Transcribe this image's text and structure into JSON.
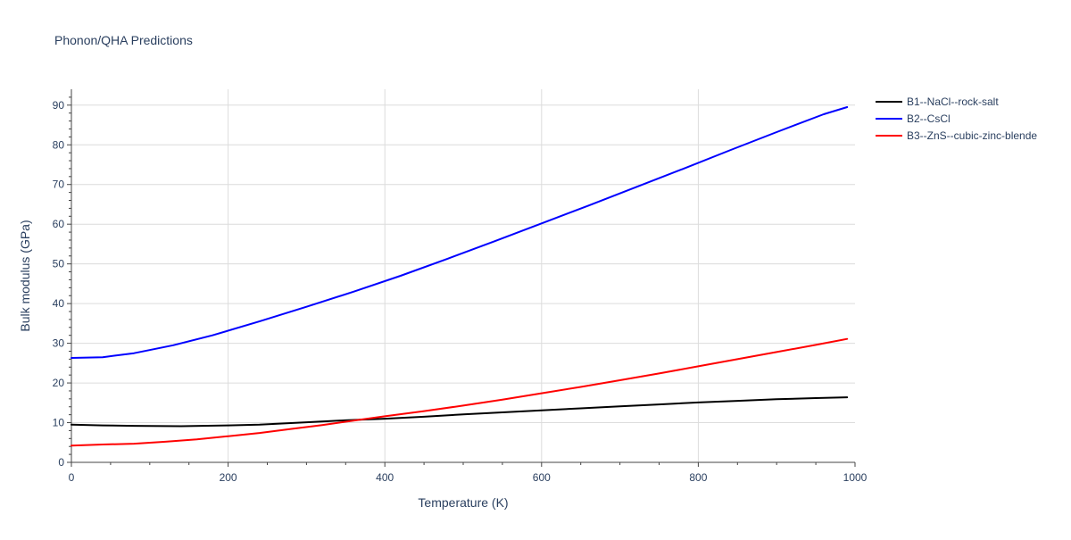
{
  "chart_data": {
    "type": "line",
    "title": "Phonon/QHA Predictions",
    "xlabel": "Temperature (K)",
    "ylabel": "Bulk modulus (GPa)",
    "xlim": [
      0,
      1000
    ],
    "ylim": [
      0,
      94
    ],
    "xticks": [
      0,
      200,
      400,
      600,
      800,
      1000
    ],
    "yticks": [
      0,
      10,
      20,
      30,
      40,
      50,
      60,
      70,
      80,
      90
    ],
    "grid": true,
    "legend_position": "top-right, outside plot",
    "series": [
      {
        "name": "B1--NaCl--rock-salt",
        "color": "#000000",
        "x": [
          0,
          40,
          80,
          140,
          200,
          240,
          300,
          350,
          400,
          450,
          500,
          550,
          600,
          650,
          700,
          750,
          800,
          850,
          900,
          950,
          990
        ],
        "y": [
          9.5,
          9.3,
          9.2,
          9.1,
          9.3,
          9.5,
          10.1,
          10.6,
          11.0,
          11.5,
          12.1,
          12.6,
          13.1,
          13.6,
          14.1,
          14.6,
          15.1,
          15.5,
          15.9,
          16.2,
          16.4
        ]
      },
      {
        "name": "B2--CsCl",
        "color": "#0000ff",
        "x": [
          0,
          40,
          80,
          130,
          180,
          240,
          300,
          360,
          420,
          480,
          540,
          600,
          660,
          720,
          780,
          840,
          900,
          960,
          990
        ],
        "y": [
          26.3,
          26.5,
          27.5,
          29.5,
          32.0,
          35.5,
          39.2,
          43.0,
          47.0,
          51.3,
          55.7,
          60.2,
          64.7,
          69.3,
          73.9,
          78.6,
          83.2,
          87.7,
          89.5
        ]
      },
      {
        "name": "B3--ZnS--cubic-zinc-blende",
        "color": "#ff0000",
        "x": [
          0,
          40,
          80,
          120,
          160,
          200,
          240,
          280,
          320,
          360,
          400,
          450,
          500,
          550,
          600,
          650,
          700,
          750,
          800,
          850,
          900,
          950,
          990
        ],
        "y": [
          4.2,
          4.5,
          4.7,
          5.2,
          5.8,
          6.6,
          7.4,
          8.4,
          9.4,
          10.5,
          11.6,
          12.9,
          14.3,
          15.8,
          17.4,
          19.0,
          20.7,
          22.4,
          24.2,
          26.0,
          27.8,
          29.6,
          31.1
        ]
      }
    ]
  }
}
